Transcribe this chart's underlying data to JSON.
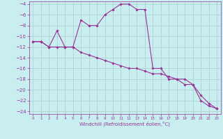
{
  "xlabel": "Windchill (Refroidissement éolien,°C)",
  "ylabel": "",
  "bg_color": "#c8eef0",
  "line_color": "#993399",
  "grid_color": "#aacccc",
  "line1_x": [
    0,
    1,
    2,
    3,
    4,
    5,
    6,
    7,
    8,
    9,
    10,
    11,
    12,
    13,
    14,
    15,
    16,
    17,
    18,
    19,
    20,
    21,
    22,
    23
  ],
  "line1_y": [
    -11,
    -11,
    -12,
    -9,
    -12,
    -12,
    -7,
    -8,
    -8,
    -6,
    -5,
    -4,
    -4,
    -5,
    -5,
    -16,
    -16,
    -18,
    -18,
    -19,
    -19,
    -22,
    -23,
    -23.5
  ],
  "line2_x": [
    0,
    1,
    2,
    3,
    4,
    5,
    6,
    7,
    8,
    9,
    10,
    11,
    12,
    13,
    14,
    15,
    16,
    17,
    18,
    19,
    20,
    21,
    22,
    23
  ],
  "line2_y": [
    -11,
    -11,
    -12,
    -12,
    -12,
    -12,
    -13,
    -13.5,
    -14,
    -14.5,
    -15,
    -15.5,
    -16,
    -16,
    -16.5,
    -17,
    -17,
    -17.5,
    -18,
    -18,
    -19,
    -21,
    -22.5,
    -23.5
  ],
  "xlim": [
    -0.5,
    23.5
  ],
  "ylim": [
    -24.5,
    -3.5
  ],
  "xticks": [
    0,
    1,
    2,
    3,
    4,
    5,
    6,
    7,
    8,
    9,
    10,
    11,
    12,
    13,
    14,
    15,
    16,
    17,
    18,
    19,
    20,
    21,
    22,
    23
  ],
  "yticks": [
    -4,
    -6,
    -8,
    -10,
    -12,
    -14,
    -16,
    -18,
    -20,
    -22,
    -24
  ]
}
